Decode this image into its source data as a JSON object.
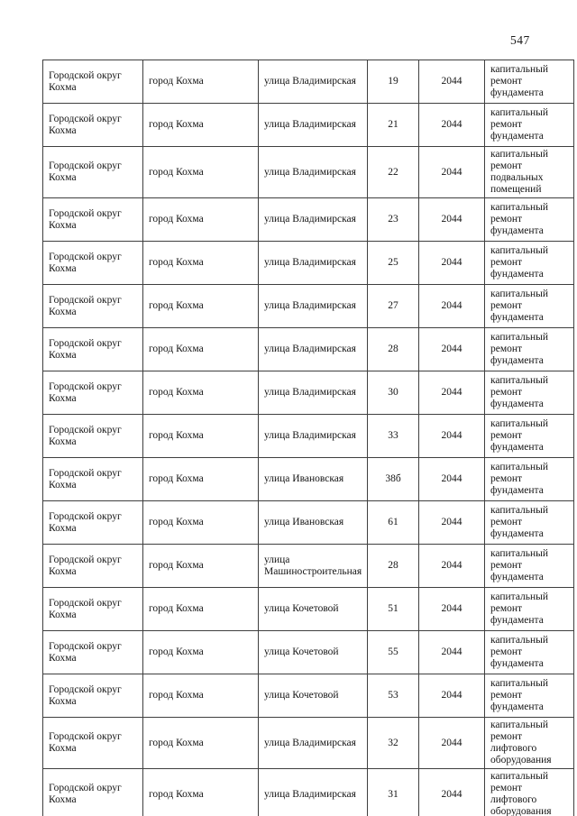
{
  "page_number": "547",
  "table": {
    "columns": [
      "municipality",
      "city",
      "street",
      "house_number",
      "year",
      "repair_type"
    ],
    "rows": [
      [
        "Городской округ Кохма",
        "город Кохма",
        "улица Владимирская",
        "19",
        "2044",
        "капитальный ремонт фундамента"
      ],
      [
        "Городской округ Кохма",
        "город Кохма",
        "улица Владимирская",
        "21",
        "2044",
        "капитальный ремонт фундамента"
      ],
      [
        "Городской округ Кохма",
        "город Кохма",
        "улица Владимирская",
        "22",
        "2044",
        "капитальный ремонт подвальных помещений"
      ],
      [
        "Городской округ Кохма",
        "город Кохма",
        "улица Владимирская",
        "23",
        "2044",
        "капитальный ремонт фундамента"
      ],
      [
        "Городской округ Кохма",
        "город Кохма",
        "улица Владимирская",
        "25",
        "2044",
        "капитальный ремонт фундамента"
      ],
      [
        "Городской округ Кохма",
        "город Кохма",
        "улица Владимирская",
        "27",
        "2044",
        "капитальный ремонт фундамента"
      ],
      [
        "Городской округ Кохма",
        "город Кохма",
        "улица Владимирская",
        "28",
        "2044",
        "капитальный ремонт фундамента"
      ],
      [
        "Городской округ Кохма",
        "город Кохма",
        "улица Владимирская",
        "30",
        "2044",
        "капитальный ремонт фундамента"
      ],
      [
        "Городской округ Кохма",
        "город Кохма",
        "улица Владимирская",
        "33",
        "2044",
        "капитальный ремонт фундамента"
      ],
      [
        "Городской округ Кохма",
        "город Кохма",
        "улица Ивановская",
        "38б",
        "2044",
        "капитальный ремонт фундамента"
      ],
      [
        "Городской округ Кохма",
        "город Кохма",
        "улица Ивановская",
        "61",
        "2044",
        "капитальный ремонт фундамента"
      ],
      [
        "Городской округ Кохма",
        "город Кохма",
        "улица Машиностроительная",
        "28",
        "2044",
        "капитальный ремонт фундамента"
      ],
      [
        "Городской округ Кохма",
        "город Кохма",
        "улица Кочетовой",
        "51",
        "2044",
        "капитальный ремонт фундамента"
      ],
      [
        "Городской округ Кохма",
        "город Кохма",
        "улица Кочетовой",
        "55",
        "2044",
        "капитальный ремонт фундамента"
      ],
      [
        "Городской округ Кохма",
        "город Кохма",
        "улица Кочетовой",
        "53",
        "2044",
        "капитальный ремонт фундамента"
      ],
      [
        "Городской округ Кохма",
        "город Кохма",
        "улица Владимирская",
        "32",
        "2044",
        "капитальный ремонт лифтового оборудования"
      ],
      [
        "Городской округ Кохма",
        "город Кохма",
        "улица Владимирская",
        "31",
        "2044",
        "капитальный ремонт лифтового оборудования"
      ]
    ]
  }
}
